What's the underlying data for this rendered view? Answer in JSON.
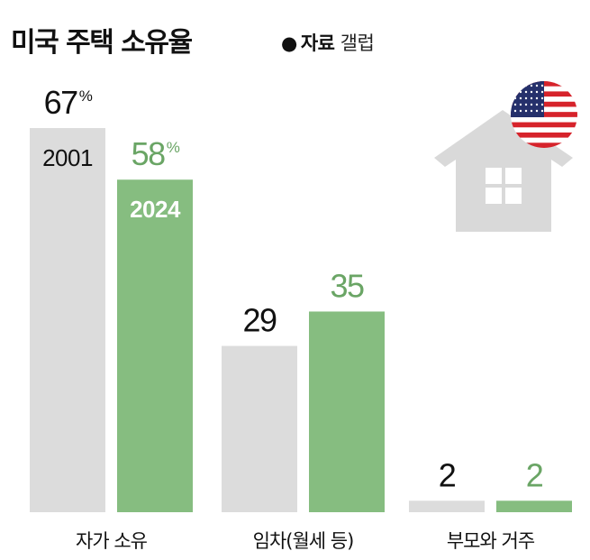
{
  "header": {
    "title": "미국 주택 소유율",
    "source_marker": "●",
    "source_label": "자료",
    "source_value": "갤럽"
  },
  "colors": {
    "series_2001": "#dcdcdc",
    "series_2024": "#86bd80",
    "value_2001": "#111111",
    "value_2024": "#6aa565",
    "house": "#d9d9d9"
  },
  "icons": [
    "house-icon",
    "us-flag-icon"
  ],
  "chart_data": {
    "type": "bar",
    "title": "미국 주택 소유율",
    "unit": "%",
    "categories": [
      "자가 소유",
      "임차(월세 등)",
      "부모와 거주"
    ],
    "series": [
      {
        "name": "2001",
        "values": [
          67,
          29,
          2
        ]
      },
      {
        "name": "2024",
        "values": [
          58,
          35,
          2
        ]
      }
    ],
    "value_labels": [
      [
        "67",
        "29",
        "2"
      ],
      [
        "58",
        "35",
        "2"
      ]
    ],
    "ylim": [
      0,
      67
    ],
    "grid": false,
    "legend": "inside first group bars"
  }
}
